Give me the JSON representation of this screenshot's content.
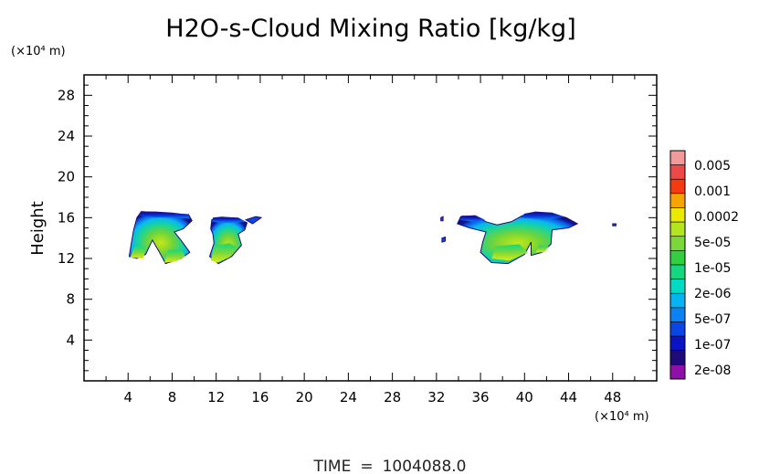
{
  "chart_data": {
    "type": "heatmap",
    "title": "H2O-s-Cloud Mixing Ratio [kg/kg]",
    "ylabel": "Height",
    "y_unit": "(×10⁴ m)",
    "x_unit": "(×10⁴ m)",
    "xlim": [
      0,
      52
    ],
    "ylim": [
      0,
      30
    ],
    "x_ticks": [
      4,
      8,
      12,
      16,
      20,
      24,
      28,
      32,
      36,
      40,
      44,
      48
    ],
    "y_ticks": [
      4,
      8,
      12,
      16,
      20,
      24,
      28
    ],
    "colorbar": {
      "labels": [
        "0.005",
        "0.001",
        "0.0002",
        "5e-05",
        "1e-05",
        "2e-06",
        "5e-07",
        "1e-07",
        "2e-08"
      ],
      "colors": [
        "#f29a9a",
        "#ef4848",
        "#f53a10",
        "#f5a400",
        "#eaea00",
        "#b4e61e",
        "#7ad83a",
        "#32d040",
        "#14d880",
        "#00dcc4",
        "#04b4f4",
        "#0a82f4",
        "#0a46e6",
        "#0a14c4",
        "#1e0a78",
        "#8e10a8"
      ]
    },
    "cloud_regions": [
      {
        "x_range": [
          4,
          10
        ],
        "y_range": [
          11.5,
          16.5
        ],
        "max_level": "5e-05"
      },
      {
        "x_range": [
          11.5,
          16
        ],
        "y_range": [
          11.5,
          16
        ],
        "max_level": "5e-05"
      },
      {
        "x_range": [
          34,
          45
        ],
        "y_range": [
          11.5,
          16.5
        ],
        "max_level": "5e-05"
      }
    ],
    "time_label": "TIME",
    "time_value": "1004088.0"
  }
}
